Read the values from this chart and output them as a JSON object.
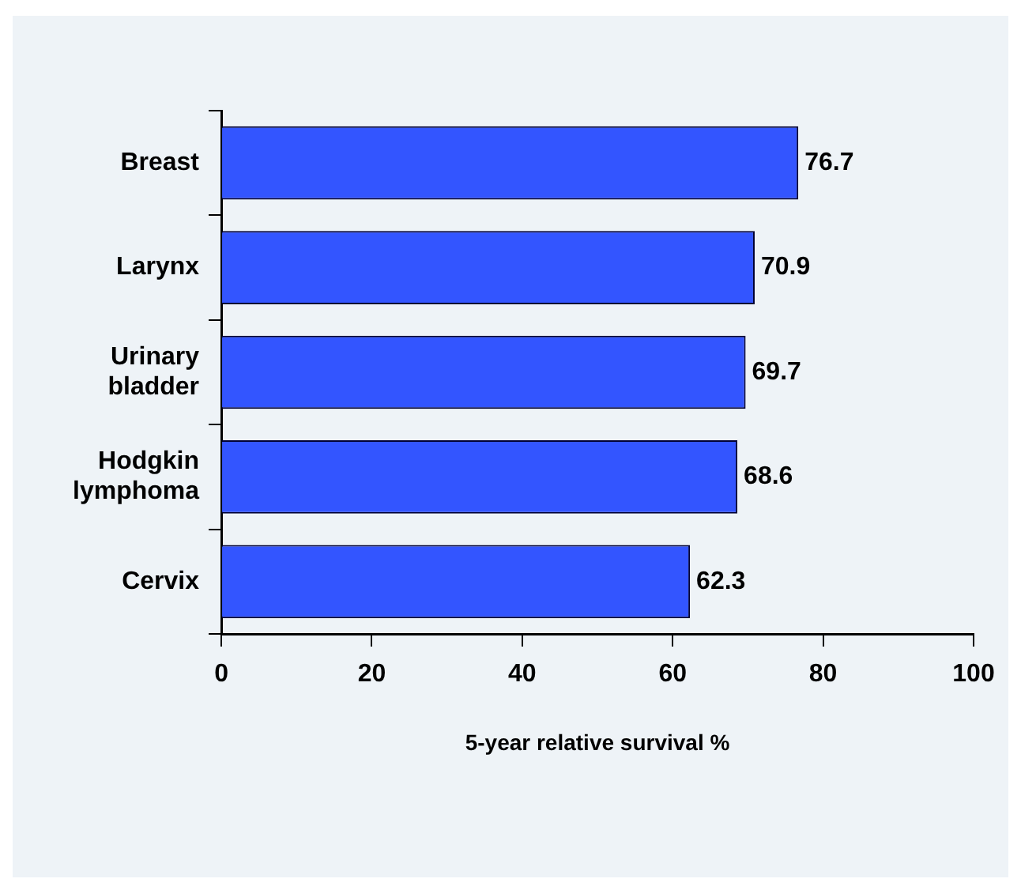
{
  "chart_data": {
    "type": "bar",
    "orientation": "horizontal",
    "xlabel": "5-year relative survival %",
    "categories": [
      "Breast",
      "Larynx",
      "Urinary bladder",
      "Hodgkin lymphoma",
      "Cervix"
    ],
    "values": [
      76.7,
      70.9,
      69.7,
      68.6,
      62.3
    ],
    "color": "#3355ff",
    "xlim": [
      0,
      100
    ],
    "xticks": [
      0,
      20,
      40,
      60,
      80,
      100
    ],
    "data_labels": true,
    "grid": false,
    "legend": false
  }
}
